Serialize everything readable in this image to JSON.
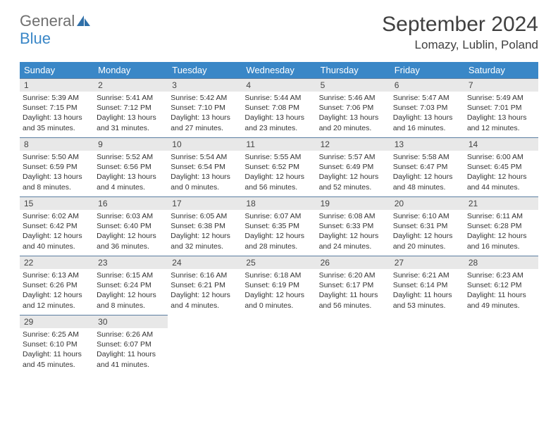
{
  "logo": {
    "line1": "General",
    "line2": "Blue"
  },
  "title": {
    "month": "September 2024",
    "location": "Lomazy, Lublin, Poland"
  },
  "daysOfWeek": [
    "Sunday",
    "Monday",
    "Tuesday",
    "Wednesday",
    "Thursday",
    "Friday",
    "Saturday"
  ],
  "colors": {
    "headerBar": "#3a87c7",
    "dayBand": "#e8e8e8",
    "rowSeparator": "#5b7ea1",
    "textPrimary": "#333333",
    "logoGray": "#6f6f6f",
    "logoBlue": "#3a87c7"
  },
  "layout": {
    "startDayIndex": 0,
    "columns": 7,
    "rows": 5
  },
  "days": [
    {
      "n": "1",
      "sunrise": "5:39 AM",
      "sunset": "7:15 PM",
      "dl": "13 hours and 35 minutes."
    },
    {
      "n": "2",
      "sunrise": "5:41 AM",
      "sunset": "7:12 PM",
      "dl": "13 hours and 31 minutes."
    },
    {
      "n": "3",
      "sunrise": "5:42 AM",
      "sunset": "7:10 PM",
      "dl": "13 hours and 27 minutes."
    },
    {
      "n": "4",
      "sunrise": "5:44 AM",
      "sunset": "7:08 PM",
      "dl": "13 hours and 23 minutes."
    },
    {
      "n": "5",
      "sunrise": "5:46 AM",
      "sunset": "7:06 PM",
      "dl": "13 hours and 20 minutes."
    },
    {
      "n": "6",
      "sunrise": "5:47 AM",
      "sunset": "7:03 PM",
      "dl": "13 hours and 16 minutes."
    },
    {
      "n": "7",
      "sunrise": "5:49 AM",
      "sunset": "7:01 PM",
      "dl": "13 hours and 12 minutes."
    },
    {
      "n": "8",
      "sunrise": "5:50 AM",
      "sunset": "6:59 PM",
      "dl": "13 hours and 8 minutes."
    },
    {
      "n": "9",
      "sunrise": "5:52 AM",
      "sunset": "6:56 PM",
      "dl": "13 hours and 4 minutes."
    },
    {
      "n": "10",
      "sunrise": "5:54 AM",
      "sunset": "6:54 PM",
      "dl": "13 hours and 0 minutes."
    },
    {
      "n": "11",
      "sunrise": "5:55 AM",
      "sunset": "6:52 PM",
      "dl": "12 hours and 56 minutes."
    },
    {
      "n": "12",
      "sunrise": "5:57 AM",
      "sunset": "6:49 PM",
      "dl": "12 hours and 52 minutes."
    },
    {
      "n": "13",
      "sunrise": "5:58 AM",
      "sunset": "6:47 PM",
      "dl": "12 hours and 48 minutes."
    },
    {
      "n": "14",
      "sunrise": "6:00 AM",
      "sunset": "6:45 PM",
      "dl": "12 hours and 44 minutes."
    },
    {
      "n": "15",
      "sunrise": "6:02 AM",
      "sunset": "6:42 PM",
      "dl": "12 hours and 40 minutes."
    },
    {
      "n": "16",
      "sunrise": "6:03 AM",
      "sunset": "6:40 PM",
      "dl": "12 hours and 36 minutes."
    },
    {
      "n": "17",
      "sunrise": "6:05 AM",
      "sunset": "6:38 PM",
      "dl": "12 hours and 32 minutes."
    },
    {
      "n": "18",
      "sunrise": "6:07 AM",
      "sunset": "6:35 PM",
      "dl": "12 hours and 28 minutes."
    },
    {
      "n": "19",
      "sunrise": "6:08 AM",
      "sunset": "6:33 PM",
      "dl": "12 hours and 24 minutes."
    },
    {
      "n": "20",
      "sunrise": "6:10 AM",
      "sunset": "6:31 PM",
      "dl": "12 hours and 20 minutes."
    },
    {
      "n": "21",
      "sunrise": "6:11 AM",
      "sunset": "6:28 PM",
      "dl": "12 hours and 16 minutes."
    },
    {
      "n": "22",
      "sunrise": "6:13 AM",
      "sunset": "6:26 PM",
      "dl": "12 hours and 12 minutes."
    },
    {
      "n": "23",
      "sunrise": "6:15 AM",
      "sunset": "6:24 PM",
      "dl": "12 hours and 8 minutes."
    },
    {
      "n": "24",
      "sunrise": "6:16 AM",
      "sunset": "6:21 PM",
      "dl": "12 hours and 4 minutes."
    },
    {
      "n": "25",
      "sunrise": "6:18 AM",
      "sunset": "6:19 PM",
      "dl": "12 hours and 0 minutes."
    },
    {
      "n": "26",
      "sunrise": "6:20 AM",
      "sunset": "6:17 PM",
      "dl": "11 hours and 56 minutes."
    },
    {
      "n": "27",
      "sunrise": "6:21 AM",
      "sunset": "6:14 PM",
      "dl": "11 hours and 53 minutes."
    },
    {
      "n": "28",
      "sunrise": "6:23 AM",
      "sunset": "6:12 PM",
      "dl": "11 hours and 49 minutes."
    },
    {
      "n": "29",
      "sunrise": "6:25 AM",
      "sunset": "6:10 PM",
      "dl": "11 hours and 45 minutes."
    },
    {
      "n": "30",
      "sunrise": "6:26 AM",
      "sunset": "6:07 PM",
      "dl": "11 hours and 41 minutes."
    }
  ],
  "labels": {
    "sunrise": "Sunrise:",
    "sunset": "Sunset:",
    "daylight": "Daylight:"
  }
}
